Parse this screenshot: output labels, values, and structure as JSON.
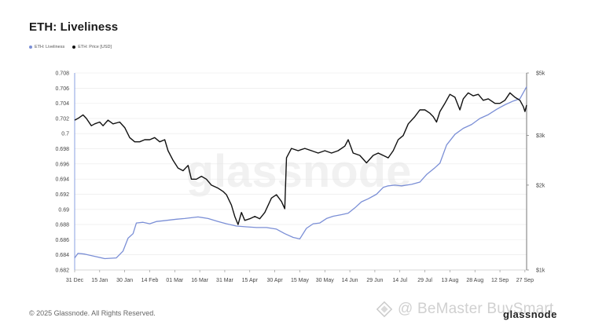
{
  "chart_data": {
    "type": "line",
    "title": "ETH: Liveliness",
    "legend": [
      "ETH: Liveliness",
      "ETH: Price [USD]"
    ],
    "legend_position": "top-left",
    "x_ticks": [
      "31 Dec",
      "15 Jan",
      "30 Jan",
      "14 Feb",
      "01 Mar",
      "16 Mar",
      "31 Mar",
      "15 Apr",
      "30 Apr",
      "15 May",
      "30 May",
      "14 Jun",
      "29 Jun",
      "14 Jul",
      "29 Jul",
      "13 Aug",
      "28 Aug",
      "12 Sep",
      "27 Sep"
    ],
    "y_left_ticks": [
      "0.708",
      "0.706",
      "0.704",
      "0.702",
      "0.7",
      "0.698",
      "0.696",
      "0.694",
      "0.692",
      "0.69",
      "0.688",
      "0.686",
      "0.684",
      "0.682"
    ],
    "y_left_range": [
      0.682,
      0.708
    ],
    "y_right_ticks": [
      "$5k",
      "$3k",
      "$2k",
      "$1k"
    ],
    "y_right_scale": "log",
    "y_right_range": [
      1000,
      5000
    ],
    "grid": "horizontal",
    "series": [
      {
        "name": "ETH: Liveliness",
        "color": "#7b8fd6",
        "axis": "left",
        "points": [
          [
            "2023-12-31",
            0.6836
          ],
          [
            "2024-01-02",
            0.6842
          ],
          [
            "2024-01-06",
            0.6841
          ],
          [
            "2024-01-12",
            0.6838
          ],
          [
            "2024-01-18",
            0.6835
          ],
          [
            "2024-01-25",
            0.6836
          ],
          [
            "2024-01-29",
            0.6845
          ],
          [
            "2024-02-01",
            0.6862
          ],
          [
            "2024-02-04",
            0.6868
          ],
          [
            "2024-02-06",
            0.6882
          ],
          [
            "2024-02-10",
            0.6883
          ],
          [
            "2024-02-14",
            0.6881
          ],
          [
            "2024-02-18",
            0.6884
          ],
          [
            "2024-02-22",
            0.6885
          ],
          [
            "2024-03-01",
            0.6887
          ],
          [
            "2024-03-06",
            0.6888
          ],
          [
            "2024-03-10",
            0.6889
          ],
          [
            "2024-03-14",
            0.689
          ],
          [
            "2024-03-20",
            0.6888
          ],
          [
            "2024-03-26",
            0.6884
          ],
          [
            "2024-03-31",
            0.6881
          ],
          [
            "2024-04-06",
            0.6878
          ],
          [
            "2024-04-12",
            0.6877
          ],
          [
            "2024-04-18",
            0.6876
          ],
          [
            "2024-04-24",
            0.6876
          ],
          [
            "2024-04-30",
            0.6874
          ],
          [
            "2024-05-05",
            0.6868
          ],
          [
            "2024-05-10",
            0.6863
          ],
          [
            "2024-05-14",
            0.6861
          ],
          [
            "2024-05-18",
            0.6875
          ],
          [
            "2024-05-22",
            0.6881
          ],
          [
            "2024-05-26",
            0.6882
          ],
          [
            "2024-05-30",
            0.6888
          ],
          [
            "2024-06-03",
            0.6891
          ],
          [
            "2024-06-08",
            0.6893
          ],
          [
            "2024-06-12",
            0.6895
          ],
          [
            "2024-06-16",
            0.6902
          ],
          [
            "2024-06-20",
            0.691
          ],
          [
            "2024-06-24",
            0.6914
          ],
          [
            "2024-06-29",
            0.692
          ],
          [
            "2024-07-03",
            0.6929
          ],
          [
            "2024-07-06",
            0.6931
          ],
          [
            "2024-07-10",
            0.6932
          ],
          [
            "2024-07-14",
            0.6931
          ],
          [
            "2024-07-20",
            0.6933
          ],
          [
            "2024-07-25",
            0.6936
          ],
          [
            "2024-07-29",
            0.6946
          ],
          [
            "2024-08-03",
            0.6955
          ],
          [
            "2024-08-06",
            0.6961
          ],
          [
            "2024-08-10",
            0.6985
          ],
          [
            "2024-08-15",
            0.6999
          ],
          [
            "2024-08-20",
            0.7007
          ],
          [
            "2024-08-25",
            0.7012
          ],
          [
            "2024-08-30",
            0.702
          ],
          [
            "2024-09-04",
            0.7025
          ],
          [
            "2024-09-09",
            0.7032
          ],
          [
            "2024-09-14",
            0.7038
          ],
          [
            "2024-09-19",
            0.7043
          ],
          [
            "2024-09-23",
            0.7046
          ],
          [
            "2024-09-27",
            0.7062
          ]
        ]
      },
      {
        "name": "ETH: Price [USD]",
        "color": "#111111",
        "axis": "right",
        "points": [
          [
            "2023-12-31",
            3400
          ],
          [
            "2024-01-02",
            3450
          ],
          [
            "2024-01-05",
            3550
          ],
          [
            "2024-01-07",
            3450
          ],
          [
            "2024-01-10",
            3250
          ],
          [
            "2024-01-12",
            3300
          ],
          [
            "2024-01-15",
            3350
          ],
          [
            "2024-01-17",
            3250
          ],
          [
            "2024-01-20",
            3400
          ],
          [
            "2024-01-23",
            3300
          ],
          [
            "2024-01-27",
            3350
          ],
          [
            "2024-01-30",
            3200
          ],
          [
            "2024-02-02",
            2950
          ],
          [
            "2024-02-05",
            2850
          ],
          [
            "2024-02-08",
            2850
          ],
          [
            "2024-02-11",
            2900
          ],
          [
            "2024-02-14",
            2900
          ],
          [
            "2024-02-17",
            2950
          ],
          [
            "2024-02-20",
            2850
          ],
          [
            "2024-02-23",
            2900
          ],
          [
            "2024-02-25",
            2650
          ],
          [
            "2024-02-28",
            2450
          ],
          [
            "2024-03-02",
            2300
          ],
          [
            "2024-03-05",
            2250
          ],
          [
            "2024-03-08",
            2350
          ],
          [
            "2024-03-10",
            2100
          ],
          [
            "2024-03-13",
            2100
          ],
          [
            "2024-03-16",
            2150
          ],
          [
            "2024-03-19",
            2100
          ],
          [
            "2024-03-22",
            2000
          ],
          [
            "2024-03-26",
            1950
          ],
          [
            "2024-03-29",
            1900
          ],
          [
            "2024-03-31",
            1850
          ],
          [
            "2024-04-03",
            1700
          ],
          [
            "2024-04-05",
            1550
          ],
          [
            "2024-04-07",
            1450
          ],
          [
            "2024-04-09",
            1600
          ],
          [
            "2024-04-11",
            1500
          ],
          [
            "2024-04-14",
            1520
          ],
          [
            "2024-04-17",
            1550
          ],
          [
            "2024-04-20",
            1520
          ],
          [
            "2024-04-23",
            1600
          ],
          [
            "2024-04-27",
            1800
          ],
          [
            "2024-04-30",
            1850
          ],
          [
            "2024-05-03",
            1750
          ],
          [
            "2024-05-05",
            1650
          ],
          [
            "2024-05-06",
            2500
          ],
          [
            "2024-05-09",
            2700
          ],
          [
            "2024-05-13",
            2650
          ],
          [
            "2024-05-17",
            2700
          ],
          [
            "2024-05-21",
            2650
          ],
          [
            "2024-05-25",
            2600
          ],
          [
            "2024-05-29",
            2650
          ],
          [
            "2024-06-02",
            2600
          ],
          [
            "2024-06-06",
            2650
          ],
          [
            "2024-06-10",
            2750
          ],
          [
            "2024-06-12",
            2900
          ],
          [
            "2024-06-15",
            2600
          ],
          [
            "2024-06-19",
            2550
          ],
          [
            "2024-06-23",
            2400
          ],
          [
            "2024-06-27",
            2550
          ],
          [
            "2024-06-30",
            2600
          ],
          [
            "2024-07-03",
            2550
          ],
          [
            "2024-07-06",
            2500
          ],
          [
            "2024-07-09",
            2650
          ],
          [
            "2024-07-12",
            2900
          ],
          [
            "2024-07-15",
            3000
          ],
          [
            "2024-07-18",
            3300
          ],
          [
            "2024-07-22",
            3500
          ],
          [
            "2024-07-25",
            3700
          ],
          [
            "2024-07-28",
            3700
          ],
          [
            "2024-07-31",
            3600
          ],
          [
            "2024-08-02",
            3500
          ],
          [
            "2024-08-04",
            3350
          ],
          [
            "2024-08-06",
            3650
          ],
          [
            "2024-08-09",
            3900
          ],
          [
            "2024-08-12",
            4200
          ],
          [
            "2024-08-15",
            4100
          ],
          [
            "2024-08-18",
            3700
          ],
          [
            "2024-08-20",
            4050
          ],
          [
            "2024-08-23",
            4250
          ],
          [
            "2024-08-26",
            4150
          ],
          [
            "2024-08-29",
            4200
          ],
          [
            "2024-09-01",
            4000
          ],
          [
            "2024-09-04",
            4050
          ],
          [
            "2024-09-08",
            3900
          ],
          [
            "2024-09-11",
            3900
          ],
          [
            "2024-09-14",
            4000
          ],
          [
            "2024-09-17",
            4250
          ],
          [
            "2024-09-20",
            4100
          ],
          [
            "2024-09-23",
            4000
          ],
          [
            "2024-09-25",
            3800
          ],
          [
            "2024-09-26",
            3650
          ],
          [
            "2024-09-27",
            3850
          ]
        ]
      }
    ]
  },
  "footer": {
    "copyright": "© 2025 Glassnode. All Rights Reserved.",
    "brand": "glassnode"
  },
  "overlay": {
    "watermark_text": "@ BeMaster BuySmart"
  }
}
